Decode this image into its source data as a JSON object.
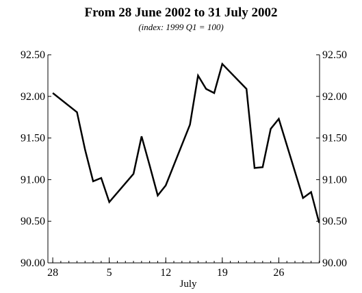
{
  "chart_data": {
    "type": "line",
    "title": "From 28 June 2002 to 31 July 2002",
    "subtitle": "(index: 1999 Q1 = 100)",
    "xlabel": "July",
    "ylabel": "",
    "ylim": [
      90.0,
      92.5
    ],
    "y_ticks": [
      "90.00",
      "90.50",
      "91.00",
      "91.50",
      "92.00",
      "92.50"
    ],
    "y_tick_values": [
      90.0,
      90.5,
      91.0,
      91.5,
      92.0,
      92.5
    ],
    "y_axes": [
      "left",
      "right"
    ],
    "x_range": [
      "2002-06-28",
      "2002-07-31"
    ],
    "x_ticks": [
      {
        "date": "2002-06-28",
        "label": "28"
      },
      {
        "date": "2002-07-05",
        "label": "5"
      },
      {
        "date": "2002-07-12",
        "label": "12"
      },
      {
        "date": "2002-07-19",
        "label": "19"
      },
      {
        "date": "2002-07-26",
        "label": "26"
      }
    ],
    "grid": false,
    "series": [
      {
        "color": "#000000",
        "points": [
          {
            "x": "2002-06-28",
            "y": 92.04
          },
          {
            "x": "2002-07-01",
            "y": 91.81
          },
          {
            "x": "2002-07-02",
            "y": 91.36
          },
          {
            "x": "2002-07-03",
            "y": 90.98
          },
          {
            "x": "2002-07-04",
            "y": 91.02
          },
          {
            "x": "2002-07-05",
            "y": 90.73
          },
          {
            "x": "2002-07-08",
            "y": 91.07
          },
          {
            "x": "2002-07-09",
            "y": 91.52
          },
          {
            "x": "2002-07-10",
            "y": 91.17
          },
          {
            "x": "2002-07-11",
            "y": 90.81
          },
          {
            "x": "2002-07-12",
            "y": 90.93
          },
          {
            "x": "2002-07-15",
            "y": 91.66
          },
          {
            "x": "2002-07-16",
            "y": 92.25
          },
          {
            "x": "2002-07-17",
            "y": 92.09
          },
          {
            "x": "2002-07-18",
            "y": 92.04
          },
          {
            "x": "2002-07-19",
            "y": 92.39
          },
          {
            "x": "2002-07-22",
            "y": 92.09
          },
          {
            "x": "2002-07-23",
            "y": 91.14
          },
          {
            "x": "2002-07-24",
            "y": 91.15
          },
          {
            "x": "2002-07-25",
            "y": 91.61
          },
          {
            "x": "2002-07-26",
            "y": 91.73
          },
          {
            "x": "2002-07-29",
            "y": 90.78
          },
          {
            "x": "2002-07-30",
            "y": 90.85
          },
          {
            "x": "2002-07-31",
            "y": 90.48
          }
        ]
      }
    ]
  }
}
